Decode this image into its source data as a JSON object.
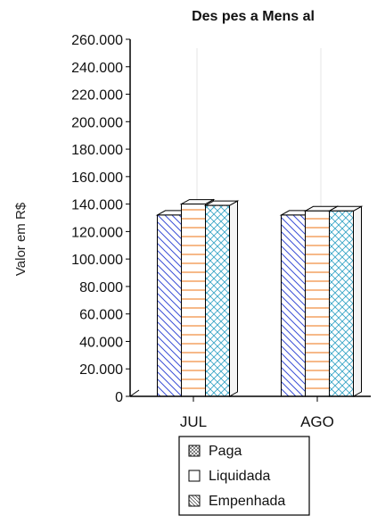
{
  "chart_data": {
    "type": "bar",
    "title": "Des pes a Mens al",
    "xlabel": "",
    "ylabel": "Valor em R$",
    "categories": [
      "JUL",
      "AGO"
    ],
    "series": [
      {
        "name": "Paga",
        "values": [
          132000,
          132000
        ],
        "color": "#3b4fd6",
        "pattern": "diagonal-back"
      },
      {
        "name": "Liquidada",
        "values": [
          140000,
          135000
        ],
        "color": "#f08a3a",
        "pattern": "horizontal"
      },
      {
        "name": "Empenhada",
        "values": [
          139000,
          135000
        ],
        "color": "#3aa6c7",
        "pattern": "crosshatch"
      }
    ],
    "ylim": [
      0,
      260000
    ],
    "yticks": [
      "0",
      "20.000",
      "40.000",
      "60.000",
      "80.000",
      "100.000",
      "120.000",
      "140.000",
      "160.000",
      "180.000",
      "200.000",
      "220.000",
      "240.000",
      "260.000"
    ],
    "grid": false,
    "legend": "bottom",
    "legend_entries": [
      "Paga",
      "Liquidada",
      "Empenhada"
    ],
    "style": "3d-bars"
  }
}
